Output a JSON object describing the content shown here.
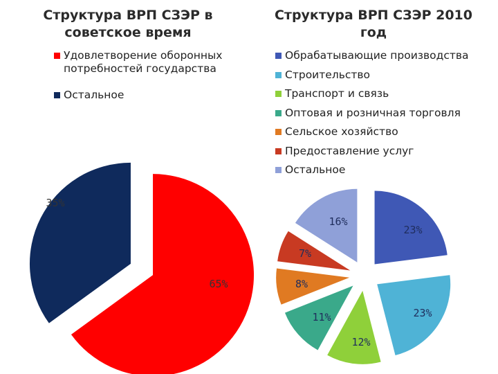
{
  "chart_data": [
    {
      "type": "pie",
      "title": "Структура ВРП СЗЭР в советское время",
      "series": [
        {
          "label": "Удовлетворение оборонных потребностей государства",
          "value": 65,
          "display": "65%",
          "color": "#ff0000"
        },
        {
          "label": "Остальное",
          "value": 35,
          "display": "35%",
          "color": "#0f2a5c"
        }
      ]
    },
    {
      "type": "pie",
      "title": "Структура ВРП СЗЭР 2010 год",
      "series": [
        {
          "label": "Обрабатывающие производства",
          "value": 23,
          "display": "23%",
          "color": "#3f58b5"
        },
        {
          "label": "Строительство",
          "value": 23,
          "display": "23%",
          "color": "#4fb3d6"
        },
        {
          "label": "Транспорт и связь",
          "value": 12,
          "display": "12%",
          "color": "#8fd03a"
        },
        {
          "label": "Оптовая и розничная торговля",
          "value": 11,
          "display": "11%",
          "color": "#3aa98a"
        },
        {
          "label": "Сельское хозяйство",
          "value": 8,
          "display": "8%",
          "color": "#e07a22"
        },
        {
          "label": "Предоставление услуг",
          "value": 7,
          "display": "7%",
          "color": "#c83a22"
        },
        {
          "label": "Остальное",
          "value": 16,
          "display": "16%",
          "color": "#8fa0d8"
        }
      ]
    }
  ]
}
